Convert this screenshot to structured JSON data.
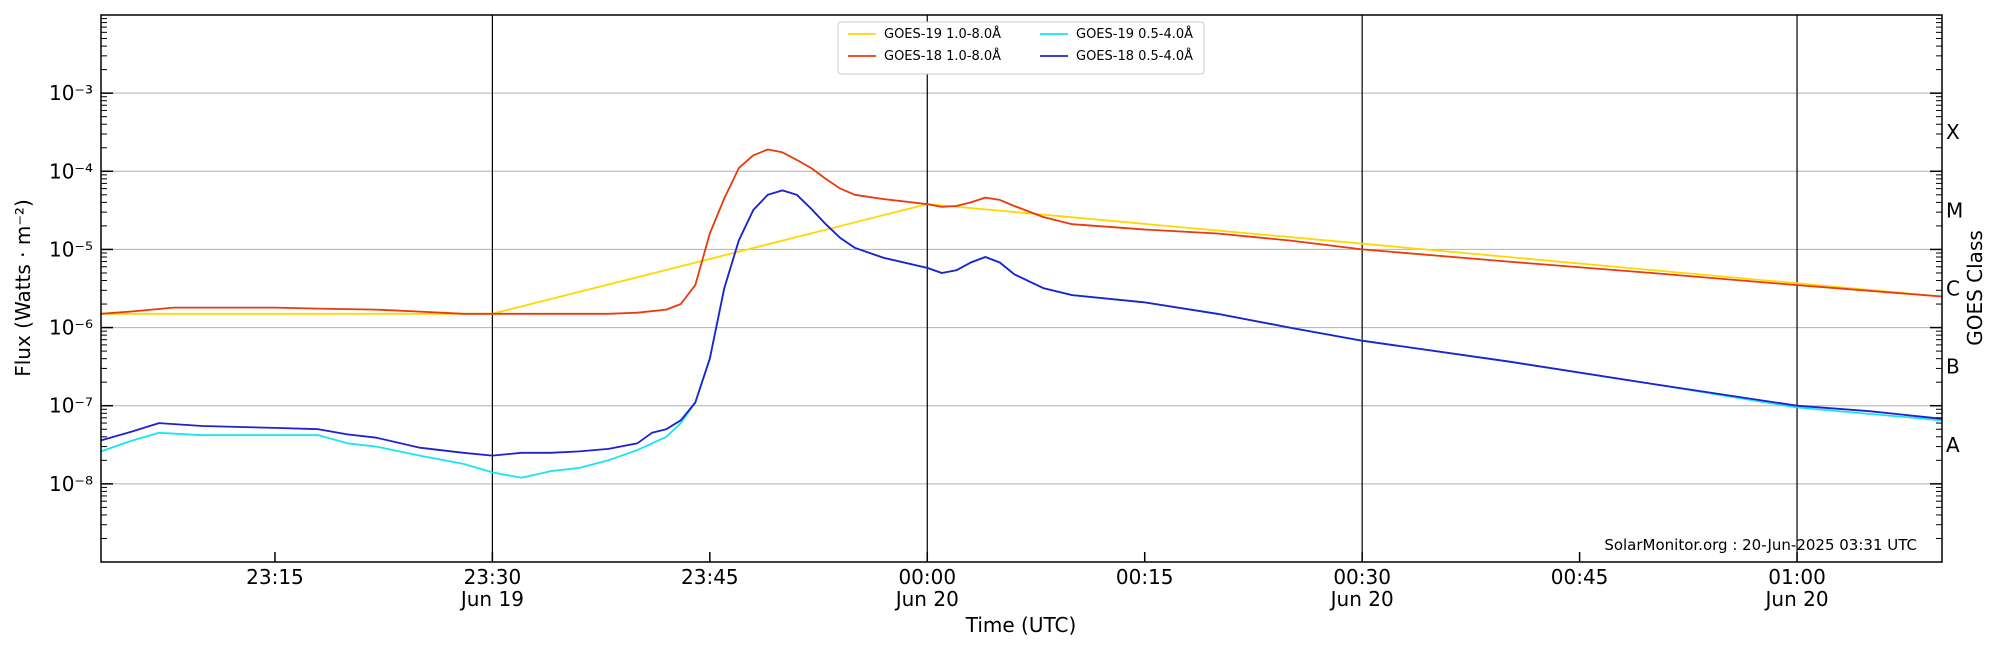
{
  "chart_data": {
    "type": "line",
    "xlabel": "Time (UTC)",
    "ylabel": "Flux (Watts · m⁻²)",
    "y2label": "GOES Class",
    "y_scale": "log",
    "ylim": [
      1e-09,
      0.01
    ],
    "xlim": [
      "2025-06-19T23:03",
      "2025-06-20T01:10"
    ],
    "grid": "horizontal",
    "legend_position": "top-center",
    "credit": "SolarMonitor.org : 20-Jun-2025 03:31 UTC",
    "y_ticks": [
      {
        "value": 1e-08,
        "label": "10⁻⁸"
      },
      {
        "value": 1e-07,
        "label": "10⁻⁷"
      },
      {
        "value": 1e-06,
        "label": "10⁻⁶"
      },
      {
        "value": 1e-05,
        "label": "10⁻⁵"
      },
      {
        "value": 0.0001,
        "label": "10⁻⁴"
      },
      {
        "value": 0.001,
        "label": "10⁻³"
      }
    ],
    "x_ticks": [
      {
        "time": "2025-06-19T23:15",
        "label": "23:15",
        "sublabel": "",
        "vline": false
      },
      {
        "time": "2025-06-19T23:30",
        "label": "23:30",
        "sublabel": "Jun 19",
        "vline": true
      },
      {
        "time": "2025-06-19T23:45",
        "label": "23:45",
        "sublabel": "",
        "vline": false
      },
      {
        "time": "2025-06-20T00:00",
        "label": "00:00",
        "sublabel": "Jun 20",
        "vline": true
      },
      {
        "time": "2025-06-20T00:15",
        "label": "00:15",
        "sublabel": "",
        "vline": false
      },
      {
        "time": "2025-06-20T00:30",
        "label": "00:30",
        "sublabel": "Jun 20",
        "vline": true
      },
      {
        "time": "2025-06-20T00:45",
        "label": "00:45",
        "sublabel": "",
        "vline": false
      },
      {
        "time": "2025-06-20T01:00",
        "label": "01:00",
        "sublabel": "Jun 20",
        "vline": true
      }
    ],
    "goes_classes": [
      {
        "label": "A",
        "value": 3.16e-08
      },
      {
        "label": "B",
        "value": 3.16e-07
      },
      {
        "label": "C",
        "value": 3.16e-06
      },
      {
        "label": "M",
        "value": 3.16e-05
      },
      {
        "label": "X",
        "value": 0.000316
      }
    ],
    "series": [
      {
        "name": "GOES-19 1.0-8.0Å",
        "color": "#FFD700",
        "points": [
          [
            "2025-06-19T23:03",
            1.5e-06
          ],
          [
            "2025-06-19T23:30",
            1.5e-06
          ],
          [
            "2025-06-20T00:00",
            3.8e-05
          ],
          [
            "2025-06-20T01:10",
            2.5e-06
          ]
        ]
      },
      {
        "name": "GOES-18 1.0-8.0Å",
        "color": "#E83A0C",
        "points": [
          [
            "2025-06-19T23:03",
            1.5e-06
          ],
          [
            "2025-06-19T23:05",
            1.6e-06
          ],
          [
            "2025-06-19T23:08",
            1.8e-06
          ],
          [
            "2025-06-19T23:12",
            1.8e-06
          ],
          [
            "2025-06-19T23:15",
            1.8e-06
          ],
          [
            "2025-06-19T23:18",
            1.75e-06
          ],
          [
            "2025-06-19T23:22",
            1.7e-06
          ],
          [
            "2025-06-19T23:25",
            1.6e-06
          ],
          [
            "2025-06-19T23:28",
            1.5e-06
          ],
          [
            "2025-06-19T23:30",
            1.5e-06
          ],
          [
            "2025-06-19T23:35",
            1.5e-06
          ],
          [
            "2025-06-19T23:38",
            1.5e-06
          ],
          [
            "2025-06-19T23:40",
            1.55e-06
          ],
          [
            "2025-06-19T23:42",
            1.7e-06
          ],
          [
            "2025-06-19T23:43",
            2e-06
          ],
          [
            "2025-06-19T23:44",
            3.5e-06
          ],
          [
            "2025-06-19T23:45",
            1.6e-05
          ],
          [
            "2025-06-19T23:46",
            4.5e-05
          ],
          [
            "2025-06-19T23:47",
            0.00011
          ],
          [
            "2025-06-19T23:48",
            0.00016
          ],
          [
            "2025-06-19T23:49",
            0.00019
          ],
          [
            "2025-06-19T23:50",
            0.000175
          ],
          [
            "2025-06-19T23:51",
            0.00014
          ],
          [
            "2025-06-19T23:52",
            0.00011
          ],
          [
            "2025-06-19T23:53",
            8e-05
          ],
          [
            "2025-06-19T23:54",
            6e-05
          ],
          [
            "2025-06-19T23:55",
            5e-05
          ],
          [
            "2025-06-19T23:57",
            4.4e-05
          ],
          [
            "2025-06-20T00:00",
            3.8e-05
          ],
          [
            "2025-06-20T00:01",
            3.5e-05
          ],
          [
            "2025-06-20T00:02",
            3.6e-05
          ],
          [
            "2025-06-20T00:03",
            4e-05
          ],
          [
            "2025-06-20T00:04",
            4.6e-05
          ],
          [
            "2025-06-20T00:05",
            4.3e-05
          ],
          [
            "2025-06-20T00:06",
            3.6e-05
          ],
          [
            "2025-06-20T00:08",
            2.6e-05
          ],
          [
            "2025-06-20T00:10",
            2.1e-05
          ],
          [
            "2025-06-20T00:15",
            1.8e-05
          ],
          [
            "2025-06-20T00:20",
            1.6e-05
          ],
          [
            "2025-06-20T00:25",
            1.3e-05
          ],
          [
            "2025-06-20T00:30",
            1e-05
          ],
          [
            "2025-06-20T00:40",
            7e-06
          ],
          [
            "2025-06-20T00:50",
            5e-06
          ],
          [
            "2025-06-20T01:00",
            3.5e-06
          ],
          [
            "2025-06-20T01:10",
            2.5e-06
          ]
        ]
      },
      {
        "name": "GOES-19 0.5-4.0Å",
        "color": "#17E5F0",
        "points": [
          [
            "2025-06-19T23:03",
            2.6e-08
          ],
          [
            "2025-06-19T23:05",
            3.5e-08
          ],
          [
            "2025-06-19T23:07",
            4.5e-08
          ],
          [
            "2025-06-19T23:10",
            4.2e-08
          ],
          [
            "2025-06-19T23:15",
            4.2e-08
          ],
          [
            "2025-06-19T23:18",
            4.2e-08
          ],
          [
            "2025-06-19T23:20",
            3.3e-08
          ],
          [
            "2025-06-19T23:22",
            3e-08
          ],
          [
            "2025-06-19T23:25",
            2.3e-08
          ],
          [
            "2025-06-19T23:28",
            1.8e-08
          ],
          [
            "2025-06-19T23:30",
            1.4e-08
          ],
          [
            "2025-06-19T23:32",
            1.2e-08
          ],
          [
            "2025-06-19T23:34",
            1.45e-08
          ],
          [
            "2025-06-19T23:36",
            1.6e-08
          ],
          [
            "2025-06-19T23:38",
            2e-08
          ],
          [
            "2025-06-19T23:40",
            2.7e-08
          ],
          [
            "2025-06-19T23:42",
            4e-08
          ],
          [
            "2025-06-19T23:43",
            6e-08
          ],
          [
            "2025-06-19T23:44",
            1.1e-07
          ],
          [
            "2025-06-19T23:45",
            4e-07
          ],
          [
            "2025-06-19T23:46",
            3.2e-06
          ],
          [
            "2025-06-19T23:47",
            1.3e-05
          ],
          [
            "2025-06-19T23:48",
            3.2e-05
          ],
          [
            "2025-06-19T23:49",
            5e-05
          ],
          [
            "2025-06-19T23:50",
            5.7e-05
          ],
          [
            "2025-06-19T23:51",
            5e-05
          ],
          [
            "2025-06-19T23:52",
            3.3e-05
          ],
          [
            "2025-06-19T23:53",
            2.1e-05
          ],
          [
            "2025-06-19T23:54",
            1.4e-05
          ],
          [
            "2025-06-19T23:55",
            1.05e-05
          ],
          [
            "2025-06-19T23:57",
            7.8e-06
          ],
          [
            "2025-06-20T00:00",
            5.8e-06
          ],
          [
            "2025-06-20T00:01",
            5e-06
          ],
          [
            "2025-06-20T00:02",
            5.4e-06
          ],
          [
            "2025-06-20T00:03",
            6.8e-06
          ],
          [
            "2025-06-20T00:04",
            8e-06
          ],
          [
            "2025-06-20T00:05",
            6.8e-06
          ],
          [
            "2025-06-20T00:06",
            4.8e-06
          ],
          [
            "2025-06-20T00:08",
            3.2e-06
          ],
          [
            "2025-06-20T00:10",
            2.6e-06
          ],
          [
            "2025-06-20T00:15",
            2.1e-06
          ],
          [
            "2025-06-20T00:20",
            1.5e-06
          ],
          [
            "2025-06-20T00:25",
            1e-06
          ],
          [
            "2025-06-20T00:30",
            6.8e-07
          ],
          [
            "2025-06-20T00:40",
            3.7e-07
          ],
          [
            "2025-06-20T00:50",
            1.9e-07
          ],
          [
            "2025-06-20T01:00",
            9.5e-08
          ],
          [
            "2025-06-20T01:10",
            6.5e-08
          ]
        ]
      },
      {
        "name": "GOES-18 0.5-4.0Å",
        "color": "#2020D0",
        "points": [
          [
            "2025-06-19T23:03",
            3.6e-08
          ],
          [
            "2025-06-19T23:05",
            4.6e-08
          ],
          [
            "2025-06-19T23:07",
            6e-08
          ],
          [
            "2025-06-19T23:10",
            5.5e-08
          ],
          [
            "2025-06-19T23:15",
            5.2e-08
          ],
          [
            "2025-06-19T23:18",
            5e-08
          ],
          [
            "2025-06-19T23:20",
            4.3e-08
          ],
          [
            "2025-06-19T23:22",
            3.9e-08
          ],
          [
            "2025-06-19T23:25",
            2.9e-08
          ],
          [
            "2025-06-19T23:28",
            2.5e-08
          ],
          [
            "2025-06-19T23:30",
            2.3e-08
          ],
          [
            "2025-06-19T23:32",
            2.5e-08
          ],
          [
            "2025-06-19T23:34",
            2.5e-08
          ],
          [
            "2025-06-19T23:36",
            2.6e-08
          ],
          [
            "2025-06-19T23:38",
            2.8e-08
          ],
          [
            "2025-06-19T23:40",
            3.3e-08
          ],
          [
            "2025-06-19T23:41",
            4.5e-08
          ],
          [
            "2025-06-19T23:42",
            5e-08
          ],
          [
            "2025-06-19T23:43",
            6.5e-08
          ],
          [
            "2025-06-19T23:44",
            1.1e-07
          ],
          [
            "2025-06-19T23:45",
            4e-07
          ],
          [
            "2025-06-19T23:46",
            3.2e-06
          ],
          [
            "2025-06-19T23:47",
            1.3e-05
          ],
          [
            "2025-06-19T23:48",
            3.2e-05
          ],
          [
            "2025-06-19T23:49",
            5e-05
          ],
          [
            "2025-06-19T23:50",
            5.7e-05
          ],
          [
            "2025-06-19T23:51",
            5e-05
          ],
          [
            "2025-06-19T23:52",
            3.3e-05
          ],
          [
            "2025-06-19T23:53",
            2.1e-05
          ],
          [
            "2025-06-19T23:54",
            1.4e-05
          ],
          [
            "2025-06-19T23:55",
            1.05e-05
          ],
          [
            "2025-06-19T23:57",
            7.8e-06
          ],
          [
            "2025-06-20T00:00",
            5.8e-06
          ],
          [
            "2025-06-20T00:01",
            5e-06
          ],
          [
            "2025-06-20T00:02",
            5.4e-06
          ],
          [
            "2025-06-20T00:03",
            6.8e-06
          ],
          [
            "2025-06-20T00:04",
            8e-06
          ],
          [
            "2025-06-20T00:05",
            6.8e-06
          ],
          [
            "2025-06-20T00:06",
            4.8e-06
          ],
          [
            "2025-06-20T00:08",
            3.2e-06
          ],
          [
            "2025-06-20T00:10",
            2.6e-06
          ],
          [
            "2025-06-20T00:15",
            2.1e-06
          ],
          [
            "2025-06-20T00:20",
            1.5e-06
          ],
          [
            "2025-06-20T00:25",
            1e-06
          ],
          [
            "2025-06-20T00:30",
            6.8e-07
          ],
          [
            "2025-06-20T00:40",
            3.7e-07
          ],
          [
            "2025-06-20T00:50",
            1.9e-07
          ],
          [
            "2025-06-20T01:00",
            1e-07
          ],
          [
            "2025-06-20T01:05",
            8.5e-08
          ],
          [
            "2025-06-20T01:10",
            6.8e-08
          ]
        ]
      }
    ]
  }
}
